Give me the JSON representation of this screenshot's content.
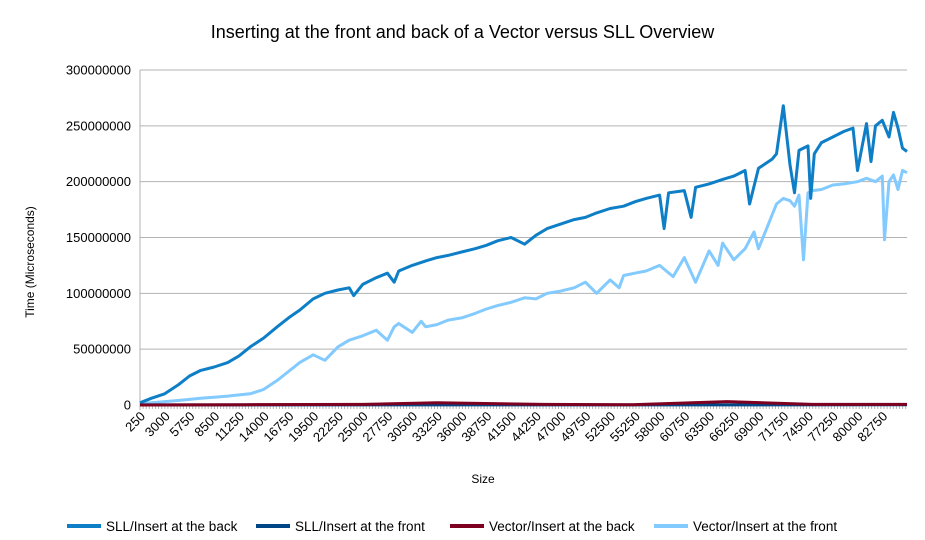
{
  "chart_data": {
    "type": "line",
    "title": "Inserting at the front and back of a Vector versus SLL Overview",
    "xlabel": "Size",
    "ylabel": "Time (Microseconds)",
    "ylim": [
      0,
      300000000
    ],
    "yticks": [
      "0",
      "50000000",
      "100000000",
      "150000000",
      "200000000",
      "250000000",
      "300000000"
    ],
    "xtick_labels": [
      "250",
      "3000",
      "5750",
      "8500",
      "11250",
      "14000",
      "16750",
      "19500",
      "22250",
      "25000",
      "27750",
      "30500",
      "33250",
      "36000",
      "38750",
      "41500",
      "44250",
      "47000",
      "49750",
      "52500",
      "55250",
      "58000",
      "60750",
      "63500",
      "66250",
      "69000",
      "71750",
      "74500",
      "77250",
      "80000",
      "82750"
    ],
    "x_range": [
      250,
      85500
    ],
    "grid": true,
    "legend_position": "bottom",
    "series": [
      {
        "name": "SLL/Insert at the back",
        "color": "#0e7fc6",
        "x": [
          250,
          1500,
          3000,
          4500,
          5750,
          7000,
          8500,
          10000,
          11250,
          12500,
          14000,
          15500,
          16750,
          18000,
          19500,
          20800,
          22250,
          23500,
          24000,
          24500,
          25000,
          26500,
          27750,
          28500,
          29000,
          30500,
          32000,
          33250,
          34500,
          36000,
          37500,
          38750,
          40000,
          41500,
          43000,
          44250,
          45500,
          47000,
          48500,
          49750,
          51000,
          52500,
          54000,
          55250,
          56500,
          58000,
          58500,
          59000,
          60750,
          61500,
          62000,
          63500,
          65000,
          66250,
          67500,
          68000,
          69000,
          70500,
          71000,
          71750,
          72500,
          73000,
          73500,
          74500,
          74800,
          75200,
          76000,
          77250,
          78500,
          79500,
          80000,
          81000,
          81500,
          82000,
          82750,
          83500,
          84000,
          84500,
          85000,
          85500
        ],
        "values": [
          2000000,
          6000000,
          10000000,
          18000000,
          26000000,
          31000000,
          34000000,
          38000000,
          44000000,
          52000000,
          60000000,
          70000000,
          78000000,
          85000000,
          95000000,
          100000000,
          103000000,
          105000000,
          98000000,
          103000000,
          108000000,
          114000000,
          118000000,
          110000000,
          120000000,
          125000000,
          129000000,
          132000000,
          134000000,
          137000000,
          140000000,
          143000000,
          147000000,
          150000000,
          144000000,
          152000000,
          158000000,
          162000000,
          166000000,
          168000000,
          172000000,
          176000000,
          178000000,
          182000000,
          185000000,
          188000000,
          158000000,
          190000000,
          192000000,
          168000000,
          195000000,
          198000000,
          202000000,
          205000000,
          210000000,
          180000000,
          212000000,
          220000000,
          225000000,
          268000000,
          215000000,
          190000000,
          228000000,
          232000000,
          185000000,
          225000000,
          235000000,
          240000000,
          245000000,
          248000000,
          210000000,
          252000000,
          218000000,
          250000000,
          255000000,
          240000000,
          262000000,
          248000000,
          230000000,
          227000000
        ]
      },
      {
        "name": "SLL/Insert at the front",
        "color": "#004586",
        "x": [
          250,
          85500
        ],
        "values": [
          100000,
          150000
        ]
      },
      {
        "name": "Vector/Insert at the back",
        "color": "#7e0021",
        "x": [
          250,
          12000,
          25000,
          33250,
          45000,
          55000,
          65500,
          75000,
          85500
        ],
        "values": [
          0,
          300000,
          500000,
          2000000,
          500000,
          300000,
          3000000,
          500000,
          500000
        ]
      },
      {
        "name": "Vector/Insert at the front",
        "color": "#83caff",
        "x": [
          250,
          1500,
          3000,
          4500,
          5750,
          7000,
          8500,
          10000,
          11250,
          12500,
          14000,
          15500,
          16750,
          18000,
          19500,
          20800,
          22250,
          23500,
          25000,
          26500,
          27750,
          28500,
          29000,
          30500,
          31500,
          32000,
          33250,
          34500,
          36000,
          37500,
          38750,
          40000,
          41500,
          43000,
          44250,
          45500,
          47000,
          48500,
          49750,
          51000,
          52500,
          53500,
          54000,
          55250,
          56500,
          58000,
          59500,
          60750,
          62000,
          63500,
          64500,
          65000,
          66250,
          67500,
          68500,
          69000,
          70500,
          71000,
          71750,
          72500,
          73000,
          73500,
          74000,
          74500,
          75000,
          76000,
          77250,
          78500,
          80000,
          81000,
          82000,
          82750,
          83000,
          83500,
          84000,
          84500,
          85000,
          85500
        ],
        "values": [
          1000000,
          2000000,
          3000000,
          4000000,
          5000000,
          6000000,
          7000000,
          8000000,
          9000000,
          10000000,
          14000000,
          22000000,
          30000000,
          38000000,
          45000000,
          40000000,
          52000000,
          58000000,
          62000000,
          67000000,
          58000000,
          70000000,
          73000000,
          65000000,
          75000000,
          70000000,
          72000000,
          76000000,
          78000000,
          82000000,
          86000000,
          89000000,
          92000000,
          96000000,
          95000000,
          100000000,
          102000000,
          105000000,
          110000000,
          100000000,
          112000000,
          105000000,
          116000000,
          118000000,
          120000000,
          125000000,
          115000000,
          132000000,
          110000000,
          138000000,
          125000000,
          145000000,
          130000000,
          140000000,
          155000000,
          140000000,
          170000000,
          180000000,
          185000000,
          183000000,
          178000000,
          188000000,
          130000000,
          190000000,
          192000000,
          193000000,
          197000000,
          198000000,
          200000000,
          203000000,
          200000000,
          205000000,
          148000000,
          200000000,
          206000000,
          193000000,
          210000000,
          208000000
        ]
      }
    ]
  }
}
